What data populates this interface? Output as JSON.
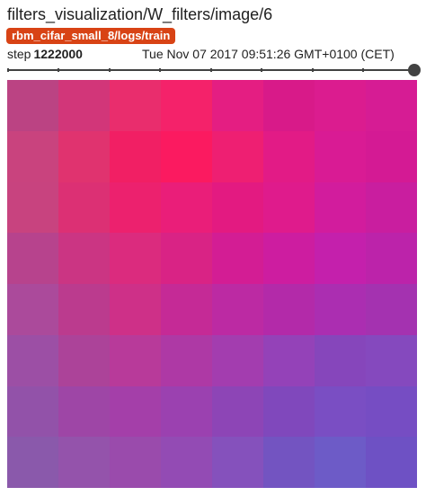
{
  "card": {
    "title": "filters_visualization/W_filters/image/6",
    "run": "rbm_cifar_small_8/logs/train",
    "step_label": "step",
    "step_value": "1222000",
    "timestamp": "Tue Nov 07 2017 09:51:26 GMT+0100 (CET)"
  },
  "slider": {
    "value_fraction": 1.0,
    "track_color": "#424242"
  },
  "image": {
    "rows": 8,
    "cols": 8,
    "pixels": [
      [
        "#bb4383",
        "#d23679",
        "#e92d6d",
        "#f4226a",
        "#e41e82",
        "#d81a89",
        "#db1c8f",
        "#d61c94"
      ],
      [
        "#c9437e",
        "#e0336f",
        "#f11f64",
        "#fb1a60",
        "#ee1f72",
        "#e21b86",
        "#d91b94",
        "#d41a94"
      ],
      [
        "#c8437f",
        "#dc3074",
        "#ec216e",
        "#ea1e79",
        "#e31a81",
        "#df1b8c",
        "#d21c9d",
        "#c91e9f"
      ],
      [
        "#b7438d",
        "#cb3583",
        "#db2b7e",
        "#d92385",
        "#d31d94",
        "#cd1da0",
        "#c420ac",
        "#bc23aa"
      ],
      [
        "#ab4a9b",
        "#bb3b8e",
        "#ce3088",
        "#c52a96",
        "#bc2aa3",
        "#b32aa9",
        "#ab2eb1",
        "#a432b0"
      ],
      [
        "#9c4fa5",
        "#ac4399",
        "#b83a9a",
        "#ae39a5",
        "#a33daf",
        "#9442b8",
        "#8646bb",
        "#8549be"
      ],
      [
        "#9252a9",
        "#9e46a6",
        "#a43fa9",
        "#9b41b0",
        "#8d45b6",
        "#8048bc",
        "#7a4ec3",
        "#764dc3"
      ],
      [
        "#8a59ab",
        "#9453ab",
        "#9a4bac",
        "#934bb4",
        "#8551bc",
        "#7354c1",
        "#6d5bc7",
        "#6e51c4"
      ]
    ]
  }
}
